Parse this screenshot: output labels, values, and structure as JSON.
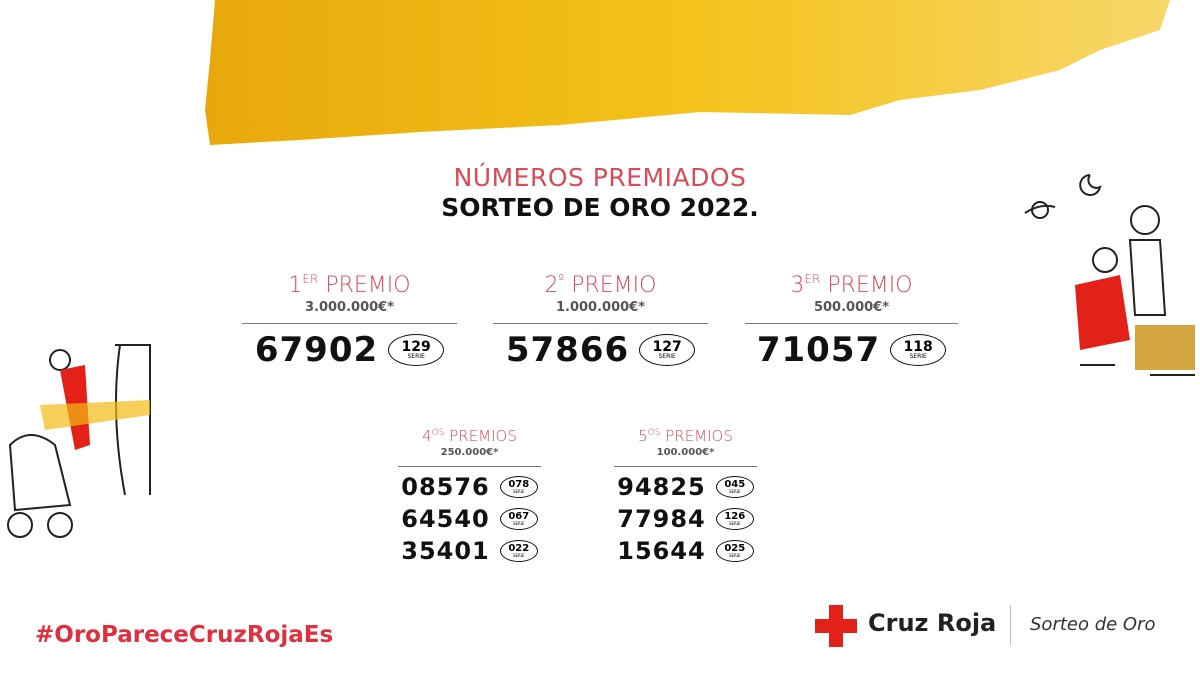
{
  "colors": {
    "accent": "#d94a5a",
    "hashtag": "#e03040",
    "cross": "#e32119",
    "gold": "#f2bb16"
  },
  "header": {
    "line1": "NÚMEROS PREMIADOS",
    "line2": "SORTEO DE ORO 2022."
  },
  "serie_label": "SERIE",
  "top_prizes": [
    {
      "ordinal": "1",
      "suffix": "ER",
      "label": "PREMIO",
      "amount": "3.000.000€*",
      "number": "67902",
      "serie": "129"
    },
    {
      "ordinal": "2",
      "suffix": "º",
      "label": "PREMIO",
      "amount": "1.000.000€*",
      "number": "57866",
      "serie": "127"
    },
    {
      "ordinal": "3",
      "suffix": "ER",
      "label": "PREMIO",
      "amount": "500.000€*",
      "number": "71057",
      "serie": "118"
    }
  ],
  "other_prizes": [
    {
      "ordinal": "4",
      "suffix": "OS",
      "label": "PREMIOS",
      "amount": "250.000€*",
      "entries": [
        {
          "number": "08576",
          "serie": "078"
        },
        {
          "number": "64540",
          "serie": "067"
        },
        {
          "number": "35401",
          "serie": "022"
        }
      ]
    },
    {
      "ordinal": "5",
      "suffix": "OS",
      "label": "PREMIOS",
      "amount": "100.000€*",
      "entries": [
        {
          "number": "94825",
          "serie": "045"
        },
        {
          "number": "77984",
          "serie": "126"
        },
        {
          "number": "15644",
          "serie": "025"
        }
      ]
    }
  ],
  "footer": {
    "hashtag": "#OroPareceCruzRojaEs",
    "brand": "Cruz Roja",
    "product": "Sorteo de Oro"
  }
}
